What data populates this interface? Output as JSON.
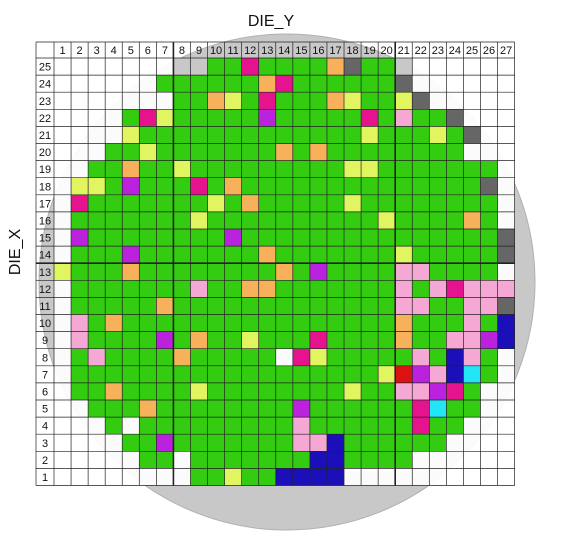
{
  "chart_data": {
    "type": "heatmap",
    "title": "DIE_Y",
    "ylabel": "DIE_X",
    "xlabel": "",
    "columns": [
      1,
      2,
      3,
      4,
      5,
      6,
      7,
      8,
      9,
      10,
      11,
      12,
      13,
      14,
      15,
      16,
      17,
      18,
      19,
      20,
      21,
      22,
      23,
      24,
      25,
      26,
      27
    ],
    "rows": [
      25,
      24,
      23,
      22,
      21,
      20,
      19,
      18,
      17,
      16,
      15,
      14,
      13,
      12,
      11,
      10,
      9,
      8,
      7,
      6,
      5,
      4,
      3,
      2,
      1
    ],
    "legend": {
      "W": "#ffffff",
      "G": "#33cc11",
      "Y": "#e0f560",
      "O": "#f6b15a",
      "P": "#f5a8d4",
      "M": "#e6138f",
      "V": "#bb22dd",
      "B": "#1a0fb8",
      "C": "#22e5f5",
      "R": "#dd1111",
      "K": "#666666",
      "L": "#c8c8c8"
    },
    "grid": [
      "WWWWWWWLLGGMGGGGOKGGLWWWWWW",
      "WWWWWWGGGGGGOMGGGGGGKWWWWWW",
      "WWWWWWWGGOYGMGGGOYGGYKWWWWW",
      "WWWWGMYGGGGGVGGGGGMGPGGKWWW",
      "WWWWYGGGGGGGGGGGGGYGGGYGKWW",
      "WWWGGYGGGGGGGOGOGGGGGGGGWWW",
      "WWGGOGGYGGGGGGGGGYYGGGGGGGW",
      "WYYGVGGGMGOGGGGGGGGGGGGGGKW",
      "WMGGGGGGGYGOGGGGGYGGGGGGGGW",
      "WGGGGGGGYGGGGGGGGGGYGGGGOGW",
      "WVGGGGGGGGVGGGGGGGGGGGGGGGK",
      "WGGGVGGGGGGGOGGGGGGGYGGGGGK",
      "YGGGOGGGGGGGGOGVGGGGPPGGGGW",
      "WGGGGGGGPGGOOGGGGGGGPGPMPPP",
      "WGGGGGOGGGGGGGGGGGGGPPGGPPK",
      "WPGOGGGGGGGGGGGGGGGGOGGGPGB",
      "WPGGGGVGOGGYGGGMGGGGOGGPPVB",
      "WGPGGGGOGGGGGWMYGGGGGPGBPGW",
      "WGGGGGGGGGGGGGGGGGGYRVPBCGW",
      "WGGOGGGGYGGGGGGGGYGGPPVMGWW",
      "WWGGGOGGGGGGGGVGGGGGGMCGGWW",
      "WWWGWGGGGGGGGGPGGGGGGMGGWWW",
      "WWWWGGVGGGGGGGPPBGGGGGGWWWW",
      "WWWWWGGWGGGGGGGBBGGGGWWWWWW",
      "WWWWWWWWGGYGGBBBBWWWWWWWWWW"
    ]
  }
}
